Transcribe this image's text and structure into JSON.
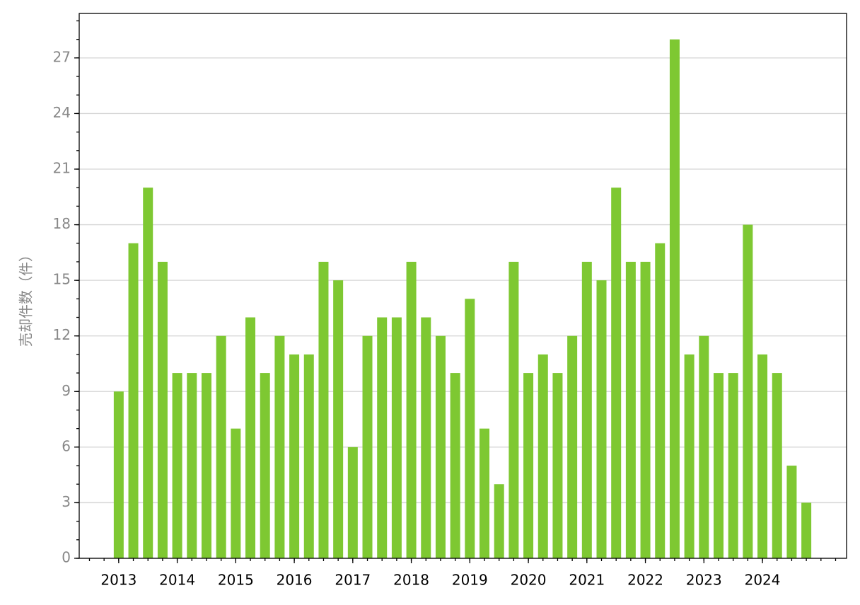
{
  "chart_data": {
    "type": "bar",
    "y_label": "売却件数（件）",
    "categories": [
      "2013",
      null,
      null,
      null,
      "2014",
      null,
      null,
      null,
      "2015",
      null,
      null,
      null,
      "2016",
      null,
      null,
      null,
      "2017",
      null,
      null,
      null,
      "2018",
      null,
      null,
      null,
      "2019",
      null,
      null,
      null,
      "2020",
      null,
      null,
      null,
      "2021",
      null,
      null,
      null,
      "2022",
      null,
      null,
      null,
      "2023",
      null,
      null,
      null,
      "2024",
      null,
      null,
      null
    ],
    "values": [
      9,
      17,
      20,
      16,
      10,
      10,
      10,
      12,
      7,
      13,
      10,
      12,
      11,
      11,
      16,
      15,
      6,
      12,
      13,
      13,
      16,
      13,
      12,
      10,
      14,
      7,
      4,
      16,
      10,
      11,
      10,
      12,
      16,
      15,
      20,
      16,
      16,
      17,
      28,
      11,
      12,
      10,
      10,
      18,
      11,
      10,
      5,
      3
    ],
    "color": "#7ec832",
    "ylim": [
      0,
      29.4
    ],
    "yticks": [
      0,
      3,
      6,
      9,
      12,
      15,
      18,
      21,
      24,
      27
    ],
    "grid": true
  }
}
